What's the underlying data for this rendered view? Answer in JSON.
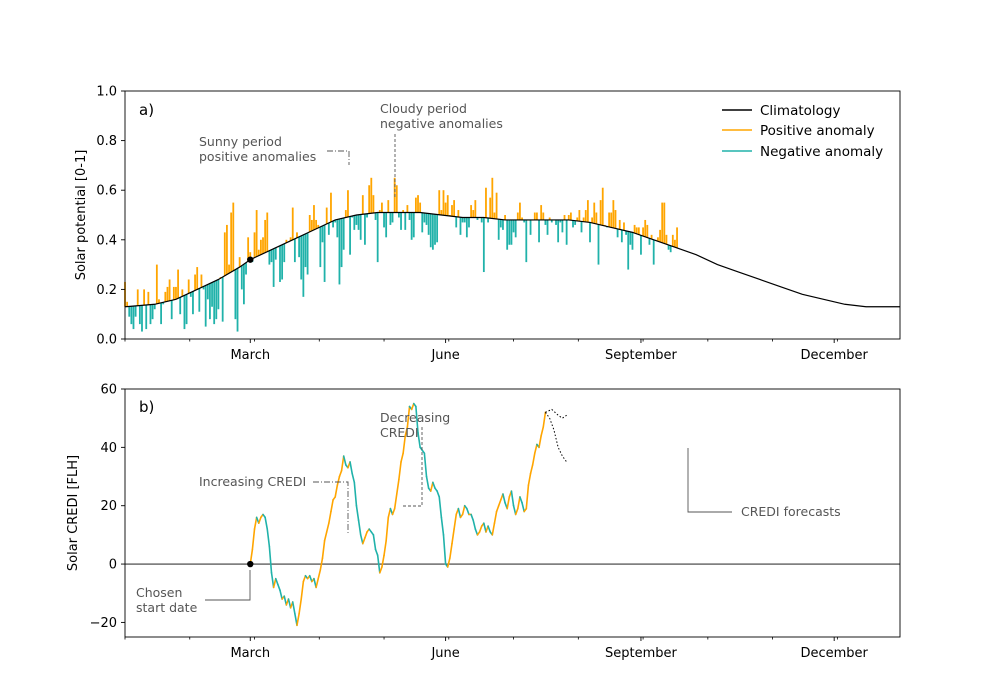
{
  "chart_data": [
    {
      "panel": "a)",
      "type": "bar",
      "ylabel": "Solar potential [0-1]",
      "xlabel": "",
      "ylim": [
        0.0,
        1.0
      ],
      "xlim_day": [
        1,
        366
      ],
      "yticks": [
        "0.0",
        "0.2",
        "0.4",
        "0.6",
        "0.8",
        "1.0"
      ],
      "xticks": [
        {
          "label": "March",
          "day": 60
        },
        {
          "label": "June",
          "day": 152
        },
        {
          "label": "September",
          "day": 244
        },
        {
          "label": "December",
          "day": 335
        }
      ],
      "legend_position": "top-right",
      "legend": [
        {
          "label": "Climatology",
          "color": "#000000"
        },
        {
          "label": "Positive anomaly",
          "color": "#FFA500"
        },
        {
          "label": "Negative anomaly",
          "color": "#20B2AA"
        }
      ],
      "climatology_points": [
        [
          1,
          0.13
        ],
        [
          15,
          0.14
        ],
        [
          25,
          0.16
        ],
        [
          35,
          0.2
        ],
        [
          45,
          0.24
        ],
        [
          55,
          0.29
        ],
        [
          60,
          0.32
        ],
        [
          70,
          0.36
        ],
        [
          80,
          0.4
        ],
        [
          90,
          0.44
        ],
        [
          100,
          0.48
        ],
        [
          110,
          0.5
        ],
        [
          120,
          0.51
        ],
        [
          130,
          0.51
        ],
        [
          140,
          0.51
        ],
        [
          150,
          0.5
        ],
        [
          160,
          0.49
        ],
        [
          170,
          0.49
        ],
        [
          180,
          0.48
        ],
        [
          190,
          0.48
        ],
        [
          200,
          0.48
        ],
        [
          210,
          0.48
        ],
        [
          220,
          0.47
        ],
        [
          230,
          0.45
        ],
        [
          240,
          0.43
        ],
        [
          250,
          0.4
        ],
        [
          260,
          0.37
        ],
        [
          270,
          0.34
        ],
        [
          280,
          0.3
        ],
        [
          290,
          0.27
        ],
        [
          300,
          0.24
        ],
        [
          310,
          0.21
        ],
        [
          320,
          0.18
        ],
        [
          330,
          0.16
        ],
        [
          340,
          0.14
        ],
        [
          350,
          0.13
        ],
        [
          360,
          0.13
        ],
        [
          366,
          0.13
        ]
      ],
      "daily_values": {
        "start_day": 1,
        "values": [
          0.23,
          0.15,
          0.09,
          0.06,
          0.04,
          0.09,
          0.2,
          0.06,
          0.03,
          0.2,
          0.04,
          0.19,
          0.06,
          0.08,
          0.12,
          0.3,
          0.16,
          0.06,
          0.14,
          0.19,
          0.21,
          0.24,
          0.08,
          0.21,
          0.21,
          0.28,
          0.1,
          0.2,
          0.04,
          0.06,
          0.24,
          0.17,
          0.1,
          0.26,
          0.29,
          0.11,
          0.26,
          0.2,
          0.05,
          0.16,
          0.08,
          0.13,
          0.06,
          0.08,
          0.12,
          0.25,
          0.07,
          0.43,
          0.46,
          0.3,
          0.51,
          0.55,
          0.08,
          0.03,
          0.33,
          0.2,
          0.14,
          0.26,
          0.41,
          0.35,
          0.31,
          0.43,
          0.52,
          0.36,
          0.4,
          0.41,
          0.48,
          0.51,
          0.3,
          0.31,
          0.21,
          0.32,
          0.37,
          0.23,
          0.24,
          0.31,
          0.4,
          0.39,
          0.41,
          0.53,
          0.31,
          0.43,
          0.33,
          0.24,
          0.17,
          0.29,
          0.26,
          0.5,
          0.48,
          0.54,
          0.48,
          0.46,
          0.29,
          0.39,
          0.23,
          0.53,
          0.42,
          0.59,
          0.45,
          0.47,
          0.41,
          0.22,
          0.29,
          0.36,
          0.52,
          0.6,
          0.34,
          0.49,
          0.44,
          0.46,
          0.44,
          0.4,
          0.58,
          0.38,
          0.49,
          0.62,
          0.65,
          0.58,
          0.48,
          0.31,
          0.52,
          0.55,
          0.45,
          0.41,
          0.56,
          0.46,
          0.47,
          0.65,
          0.62,
          0.49,
          0.44,
          0.52,
          0.44,
          0.54,
          0.48,
          0.4,
          0.41,
          0.57,
          0.58,
          0.55,
          0.43,
          0.47,
          0.46,
          0.42,
          0.37,
          0.36,
          0.38,
          0.39,
          0.6,
          0.52,
          0.6,
          0.55,
          0.58,
          0.5,
          0.54,
          0.56,
          0.45,
          0.52,
          0.42,
          0.47,
          0.47,
          0.41,
          0.45,
          0.54,
          0.52,
          0.56,
          0.48,
          0.49,
          0.47,
          0.27,
          0.61,
          0.47,
          0.57,
          0.65,
          0.51,
          0.59,
          0.4,
          0.45,
          0.44,
          0.5,
          0.36,
          0.38,
          0.38,
          0.43,
          0.41,
          0.51,
          0.55,
          0.49,
          0.47,
          0.31,
          0.48,
          0.42,
          0.48,
          0.51,
          0.51,
          0.39,
          0.54,
          0.51,
          0.46,
          0.42,
          0.49,
          0.47,
          0.48,
          0.46,
          0.39,
          0.47,
          0.43,
          0.5,
          0.38,
          0.5,
          0.51,
          0.45,
          0.46,
          0.49,
          0.52,
          0.43,
          0.49,
          0.52,
          0.56,
          0.39,
          0.49,
          0.55,
          0.51,
          0.3,
          0.56,
          0.61,
          0.46,
          0.45,
          0.51,
          0.51,
          0.56,
          0.52,
          0.41,
          0.48,
          0.39,
          0.47,
          0.42,
          0.28,
          0.38,
          0.36,
          0.46,
          0.45,
          0.45,
          0.34,
          0.45,
          0.48,
          0.46,
          0.38,
          0.42,
          0.3,
          0.4,
          0.41,
          0.44,
          0.55,
          0.55,
          0.42,
          0.36,
          0.35,
          0.42,
          0.4,
          0.45
        ]
      }
    },
    {
      "panel": "b)",
      "type": "line",
      "ylabel": "Solar CREDI [FLH]",
      "xlabel": "",
      "ylim": [
        -25,
        60
      ],
      "xlim_day": [
        1,
        366
      ],
      "yticks": [
        "−20",
        "0",
        "20",
        "40",
        "60"
      ],
      "xticks": [
        {
          "label": "March",
          "day": 60
        },
        {
          "label": "June",
          "day": 152
        },
        {
          "label": "September",
          "day": 244
        },
        {
          "label": "December",
          "day": 335
        }
      ],
      "credi_points": [
        [
          60,
          0
        ],
        [
          61,
          5
        ],
        [
          62,
          12
        ],
        [
          63,
          16
        ],
        [
          64,
          14
        ],
        [
          65,
          16
        ],
        [
          66,
          17
        ],
        [
          67,
          16
        ],
        [
          68,
          12
        ],
        [
          69,
          6
        ],
        [
          70,
          -3
        ],
        [
          71,
          -8
        ],
        [
          72,
          -5
        ],
        [
          73,
          -7
        ],
        [
          74,
          -9
        ],
        [
          75,
          -12
        ],
        [
          76,
          -11
        ],
        [
          77,
          -14
        ],
        [
          78,
          -12
        ],
        [
          79,
          -15
        ],
        [
          80,
          -13
        ],
        [
          81,
          -17
        ],
        [
          82,
          -21
        ],
        [
          83,
          -17
        ],
        [
          84,
          -12
        ],
        [
          85,
          -6
        ],
        [
          86,
          -4
        ],
        [
          87,
          -5
        ],
        [
          88,
          -4
        ],
        [
          89,
          -6
        ],
        [
          90,
          -5
        ],
        [
          91,
          -8
        ],
        [
          92,
          -5
        ],
        [
          93,
          -2
        ],
        [
          94,
          2
        ],
        [
          95,
          8
        ],
        [
          96,
          11
        ],
        [
          97,
          14
        ],
        [
          98,
          18
        ],
        [
          99,
          22
        ],
        [
          100,
          23
        ],
        [
          101,
          27
        ],
        [
          102,
          30
        ],
        [
          103,
          32
        ],
        [
          104,
          37
        ],
        [
          105,
          34
        ],
        [
          106,
          33
        ],
        [
          107,
          35
        ],
        [
          108,
          31
        ],
        [
          109,
          28
        ],
        [
          110,
          20
        ],
        [
          111,
          15
        ],
        [
          112,
          10
        ],
        [
          113,
          7
        ],
        [
          114,
          9
        ],
        [
          115,
          11
        ],
        [
          116,
          12
        ],
        [
          117,
          11
        ],
        [
          118,
          10
        ],
        [
          119,
          5
        ],
        [
          120,
          3
        ],
        [
          121,
          -3
        ],
        [
          122,
          -1
        ],
        [
          123,
          3
        ],
        [
          124,
          8
        ],
        [
          125,
          16
        ],
        [
          126,
          19
        ],
        [
          127,
          17
        ],
        [
          128,
          19
        ],
        [
          129,
          24
        ],
        [
          130,
          29
        ],
        [
          131,
          35
        ],
        [
          132,
          38
        ],
        [
          133,
          44
        ],
        [
          134,
          47
        ],
        [
          135,
          54
        ],
        [
          136,
          53
        ],
        [
          137,
          55
        ],
        [
          138,
          54
        ],
        [
          139,
          45
        ],
        [
          140,
          40
        ],
        [
          141,
          39
        ],
        [
          142,
          38
        ],
        [
          143,
          30
        ],
        [
          144,
          26
        ],
        [
          145,
          25
        ],
        [
          146,
          28
        ],
        [
          147,
          26
        ],
        [
          148,
          25
        ],
        [
          149,
          23
        ],
        [
          150,
          16
        ],
        [
          151,
          10
        ],
        [
          152,
          0
        ],
        [
          153,
          -1
        ],
        [
          154,
          2
        ],
        [
          155,
          7
        ],
        [
          156,
          12
        ],
        [
          157,
          17
        ],
        [
          158,
          19
        ],
        [
          159,
          16
        ],
        [
          160,
          17
        ],
        [
          161,
          20
        ],
        [
          162,
          19
        ],
        [
          163,
          17
        ],
        [
          164,
          17
        ],
        [
          165,
          15
        ],
        [
          166,
          12
        ],
        [
          167,
          10
        ],
        [
          168,
          11
        ],
        [
          169,
          13
        ],
        [
          170,
          14
        ],
        [
          171,
          11
        ],
        [
          172,
          13
        ],
        [
          173,
          11
        ],
        [
          174,
          10
        ],
        [
          175,
          14
        ],
        [
          176,
          18
        ],
        [
          177,
          20
        ],
        [
          178,
          22
        ],
        [
          179,
          24
        ],
        [
          180,
          21
        ],
        [
          181,
          19
        ],
        [
          182,
          23
        ],
        [
          183,
          25
        ],
        [
          184,
          20
        ],
        [
          185,
          17
        ],
        [
          186,
          19
        ],
        [
          187,
          23
        ],
        [
          188,
          21
        ],
        [
          189,
          18
        ],
        [
          190,
          19
        ],
        [
          191,
          27
        ],
        [
          192,
          31
        ],
        [
          193,
          34
        ],
        [
          194,
          38
        ],
        [
          195,
          41
        ],
        [
          196,
          40
        ],
        [
          197,
          44
        ],
        [
          198,
          47
        ],
        [
          199,
          52
        ]
      ],
      "forecast_lines": [
        [
          [
            199,
            52
          ],
          [
            202,
            53
          ],
          [
            205,
            51
          ],
          [
            207,
            50
          ],
          [
            209,
            51
          ]
        ],
        [
          [
            199,
            52
          ],
          [
            201,
            50
          ],
          [
            203,
            46
          ],
          [
            205,
            40
          ],
          [
            207,
            37
          ],
          [
            209,
            35
          ]
        ]
      ],
      "start_marker_day": 60
    }
  ],
  "annotations": {
    "sunny": [
      "Sunny period",
      "positive anomalies"
    ],
    "cloudy": [
      "Cloudy period",
      "negative anomalies"
    ],
    "increasing": "Increasing CREDI",
    "decreasing": [
      "Decreasing",
      "CREDI"
    ],
    "chosen": [
      "Chosen",
      "start date"
    ],
    "forecasts": "CREDI forecasts"
  },
  "colors": {
    "positive": "#FFA500",
    "negative": "#20B2AA",
    "climatology": "#000000",
    "annotation": "#555555"
  }
}
